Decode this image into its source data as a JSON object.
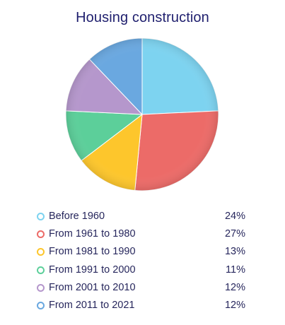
{
  "chart_data": {
    "type": "pie",
    "title": "Housing construction",
    "categories": [
      "Before 1960",
      "From 1961 to 1980",
      "From 1981 to 1990",
      "From 1991 to 2000",
      "From 2001 to 2010",
      "From 2011 to 2021"
    ],
    "values": [
      24,
      27,
      13,
      11,
      12,
      12
    ],
    "value_labels": [
      "24%",
      "27%",
      "13%",
      "11%",
      "12%",
      "12%"
    ],
    "colors": [
      "#7dd3f0",
      "#ec6b68",
      "#fdc62c",
      "#5ccf9a",
      "#b597cc",
      "#6aa8e0"
    ],
    "legend_placement": "bottom",
    "grid": false
  }
}
